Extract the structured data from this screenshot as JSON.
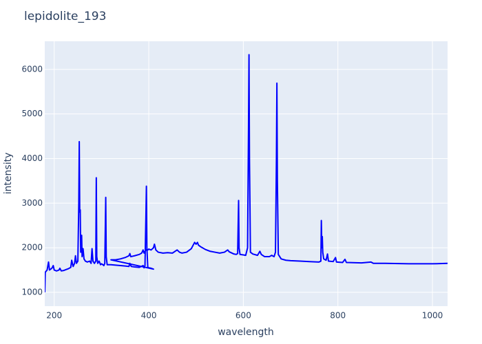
{
  "chart_data": {
    "type": "line",
    "title": "lepidolite_193",
    "x_label": "wavelength",
    "y_label": "intensity",
    "xlim": [
      180,
      1032
    ],
    "ylim": [
      690,
      6630
    ],
    "xticks": [
      200,
      400,
      600,
      800,
      1000
    ],
    "yticks": [
      1000,
      2000,
      3000,
      4000,
      5000,
      6000
    ],
    "grid": true,
    "series": [
      {
        "color": "#0000ff",
        "x": [
          180,
          181,
          185,
          188,
          190,
          195,
          198,
          200,
          205,
          210,
          212,
          215,
          220,
          225,
          230,
          235,
          237,
          240,
          243,
          245,
          247,
          250,
          252,
          253,
          254,
          255,
          256,
          258,
          259,
          261,
          263,
          266,
          270,
          275,
          278,
          280,
          282,
          285,
          288,
          289,
          290,
          292,
          295,
          298,
          300,
          303,
          305,
          307,
          309,
          310,
          312,
          320,
          330,
          340,
          350,
          358,
          360,
          363,
          370,
          380,
          388,
          390,
          392,
          394,
          395,
          396,
          398,
          400,
          405,
          410,
          320,
          330,
          340,
          350,
          358,
          360,
          362,
          370,
          380,
          385,
          388,
          390,
          392,
          395,
          398,
          400,
          405,
          410,
          412,
          415,
          420,
          430,
          440,
          450,
          460,
          465,
          470,
          480,
          490,
          497,
          500,
          503,
          505,
          510,
          520,
          530,
          540,
          550,
          560,
          567,
          570,
          580,
          585,
          588,
          590,
          591,
          593,
          600,
          605,
          609,
          611,
          612,
          613,
          615,
          620,
          630,
          635,
          638,
          645,
          655,
          660,
          665,
          668,
          670,
          671,
          672,
          674,
          680,
          690,
          700,
          720,
          740,
          760,
          764,
          765,
          766,
          767,
          768,
          770,
          775,
          778,
          780,
          790,
          795,
          797,
          810,
          815,
          818,
          850,
          870,
          875,
          900,
          950,
          1000,
          1032
        ],
        "values": [
          1000,
          1450,
          1500,
          1680,
          1500,
          1540,
          1600,
          1500,
          1480,
          1500,
          1540,
          1480,
          1490,
          1510,
          1530,
          1560,
          1720,
          1580,
          1650,
          1820,
          1650,
          1700,
          3000,
          4380,
          2800,
          2850,
          1900,
          2280,
          1800,
          1980,
          1750,
          1700,
          1680,
          1700,
          1650,
          1980,
          1700,
          1650,
          1700,
          3570,
          1800,
          1650,
          1700,
          1620,
          1640,
          1620,
          1600,
          1650,
          3130,
          1800,
          1620,
          1620,
          1610,
          1600,
          1590,
          1580,
          1650,
          1580,
          1570,
          1560,
          1600,
          1550,
          1600,
          2740,
          3380,
          2000,
          1560,
          1550,
          1540,
          1520,
          1730,
          1730,
          1750,
          1780,
          1820,
          1870,
          1800,
          1820,
          1850,
          1880,
          1950,
          1880,
          1920,
          1960,
          1950,
          1970,
          1950,
          2000,
          2080,
          1950,
          1900,
          1880,
          1890,
          1880,
          1950,
          1900,
          1880,
          1900,
          1980,
          2120,
          2080,
          2120,
          2060,
          2020,
          1960,
          1920,
          1900,
          1880,
          1900,
          1950,
          1910,
          1860,
          1850,
          1870,
          3060,
          2000,
          1850,
          1840,
          1830,
          2000,
          4700,
          6330,
          4000,
          1900,
          1860,
          1830,
          1920,
          1850,
          1800,
          1800,
          1830,
          1800,
          1900,
          4000,
          5690,
          3500,
          1850,
          1750,
          1720,
          1710,
          1700,
          1690,
          1680,
          1700,
          2610,
          2000,
          2250,
          1900,
          1750,
          1720,
          1860,
          1700,
          1690,
          1780,
          1680,
          1670,
          1740,
          1670,
          1660,
          1680,
          1650,
          1650,
          1640,
          1640,
          1650
        ]
      }
    ]
  }
}
